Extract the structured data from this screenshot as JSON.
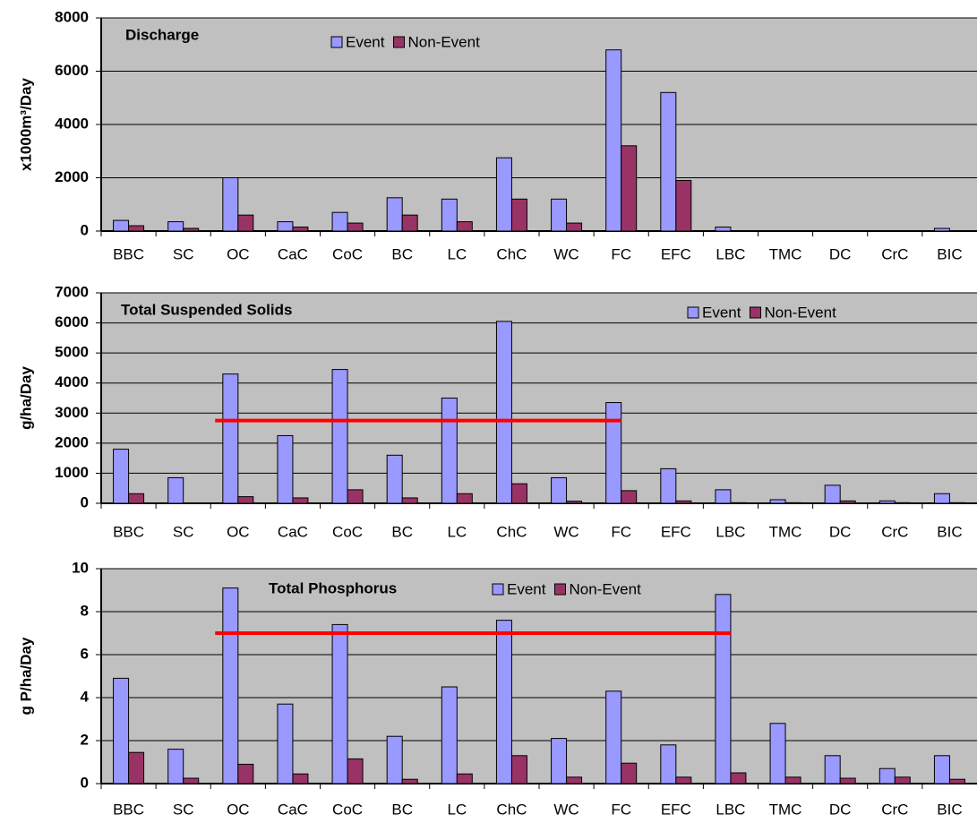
{
  "chart_data": [
    {
      "type": "bar",
      "title": "Discharge",
      "y_label": "x1000m³/Day",
      "categories": [
        "BBC",
        "SC",
        "OC",
        "CaC",
        "CoC",
        "BC",
        "LC",
        "ChC",
        "WC",
        "FC",
        "EFC",
        "LBC",
        "TMC",
        "DC",
        "CrC",
        "BIC"
      ],
      "series": [
        {
          "name": "Event",
          "color": "#9999ff",
          "values": [
            400,
            350,
            2000,
            350,
            700,
            1250,
            1200,
            2750,
            1200,
            6800,
            5200,
            150,
            0,
            0,
            0,
            100
          ]
        },
        {
          "name": "Non-Event",
          "color": "#993366",
          "values": [
            200,
            100,
            600,
            150,
            300,
            600,
            350,
            1200,
            300,
            3200,
            1900,
            0,
            0,
            0,
            0,
            0
          ]
        }
      ],
      "ylim": [
        0,
        8000
      ],
      "yticks": [
        0,
        2000,
        4000,
        6000,
        8000
      ],
      "grid": true
    },
    {
      "type": "bar",
      "title": "Total Suspended Solids",
      "y_label": "g/ha/Day",
      "categories": [
        "BBC",
        "SC",
        "OC",
        "CaC",
        "CoC",
        "BC",
        "LC",
        "ChC",
        "WC",
        "FC",
        "EFC",
        "LBC",
        "TMC",
        "DC",
        "CrC",
        "BIC"
      ],
      "series": [
        {
          "name": "Event",
          "color": "#9999ff",
          "values": [
            1800,
            850,
            4300,
            2250,
            4450,
            1600,
            3500,
            6050,
            850,
            3350,
            1150,
            450,
            120,
            600,
            80,
            320
          ]
        },
        {
          "name": "Non-Event",
          "color": "#993366",
          "values": [
            320,
            0,
            220,
            180,
            450,
            180,
            320,
            650,
            70,
            420,
            80,
            20,
            20,
            80,
            20,
            20
          ]
        }
      ],
      "ylim": [
        0,
        7000
      ],
      "yticks": [
        0,
        1000,
        2000,
        3000,
        4000,
        5000,
        6000,
        7000
      ],
      "grid": true,
      "reference_line": {
        "value": 2750,
        "color": "#ff0000",
        "start": 2,
        "end": 9
      }
    },
    {
      "type": "bar",
      "title": "Total Phosphorus",
      "y_label": "g P/ha/Day",
      "categories": [
        "BBC",
        "SC",
        "OC",
        "CaC",
        "CoC",
        "BC",
        "LC",
        "ChC",
        "WC",
        "FC",
        "EFC",
        "LBC",
        "TMC",
        "DC",
        "CrC",
        "BIC"
      ],
      "series": [
        {
          "name": "Event",
          "color": "#9999ff",
          "values": [
            4.9,
            1.6,
            9.1,
            3.7,
            7.4,
            2.2,
            4.5,
            7.6,
            2.1,
            4.3,
            1.8,
            8.8,
            2.8,
            1.3,
            0.7,
            1.3
          ]
        },
        {
          "name": "Non-Event",
          "color": "#993366",
          "values": [
            1.45,
            0.25,
            0.9,
            0.45,
            1.15,
            0.2,
            0.45,
            1.3,
            0.3,
            0.95,
            0.3,
            0.5,
            0.3,
            0.25,
            0.3,
            0.2
          ]
        }
      ],
      "ylim": [
        0,
        10
      ],
      "yticks": [
        0,
        2,
        4,
        6,
        8,
        10
      ],
      "grid": true,
      "reference_line": {
        "value": 7,
        "color": "#ff0000",
        "start": 2,
        "end": 11
      }
    }
  ]
}
